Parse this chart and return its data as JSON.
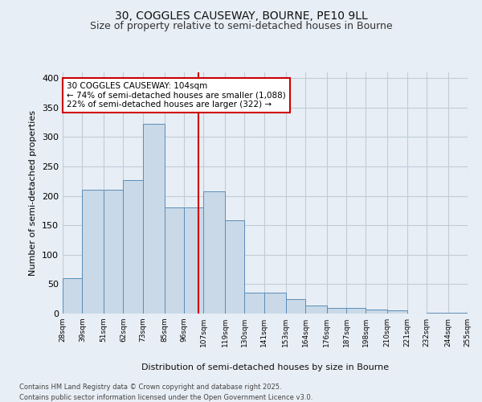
{
  "title1": "30, COGGLES CAUSEWAY, BOURNE, PE10 9LL",
  "title2": "Size of property relative to semi-detached houses in Bourne",
  "xlabel": "Distribution of semi-detached houses by size in Bourne",
  "ylabel": "Number of semi-detached properties",
  "annotation_title": "30 COGGLES CAUSEWAY: 104sqm",
  "annotation_line1": "← 74% of semi-detached houses are smaller (1,088)",
  "annotation_line2": "22% of semi-detached houses are larger (322) →",
  "footer1": "Contains HM Land Registry data © Crown copyright and database right 2025.",
  "footer2": "Contains public sector information licensed under the Open Government Licence v3.0.",
  "property_size": 104,
  "bar_left_edges": [
    28,
    39,
    51,
    62,
    73,
    85,
    96,
    107,
    119,
    130,
    141,
    153,
    164,
    176,
    187,
    198,
    210,
    221,
    232,
    244
  ],
  "bar_widths": [
    11,
    12,
    11,
    11,
    12,
    11,
    11,
    12,
    11,
    11,
    12,
    11,
    12,
    11,
    11,
    12,
    11,
    11,
    12,
    11
  ],
  "bar_heights": [
    60,
    210,
    210,
    227,
    322,
    181,
    181,
    208,
    158,
    35,
    35,
    25,
    13,
    10,
    10,
    7,
    5,
    0,
    2,
    2
  ],
  "tick_labels": [
    "28sqm",
    "39sqm",
    "51sqm",
    "62sqm",
    "73sqm",
    "85sqm",
    "96sqm",
    "107sqm",
    "119sqm",
    "130sqm",
    "141sqm",
    "153sqm",
    "164sqm",
    "176sqm",
    "187sqm",
    "198sqm",
    "210sqm",
    "221sqm",
    "232sqm",
    "244sqm",
    "255sqm"
  ],
  "bar_color": "#c9d9e8",
  "bar_edge_color": "#5b8db8",
  "vline_color": "#cc0000",
  "vline_x": 104,
  "annotation_box_color": "#cc0000",
  "annotation_bg": "#ffffff",
  "grid_color": "#c0ccd8",
  "bg_color": "#e8eef5",
  "ylim": [
    0,
    410
  ],
  "yticks": [
    0,
    50,
    100,
    150,
    200,
    250,
    300,
    350,
    400
  ],
  "title_fontsize": 10,
  "subtitle_fontsize": 9
}
